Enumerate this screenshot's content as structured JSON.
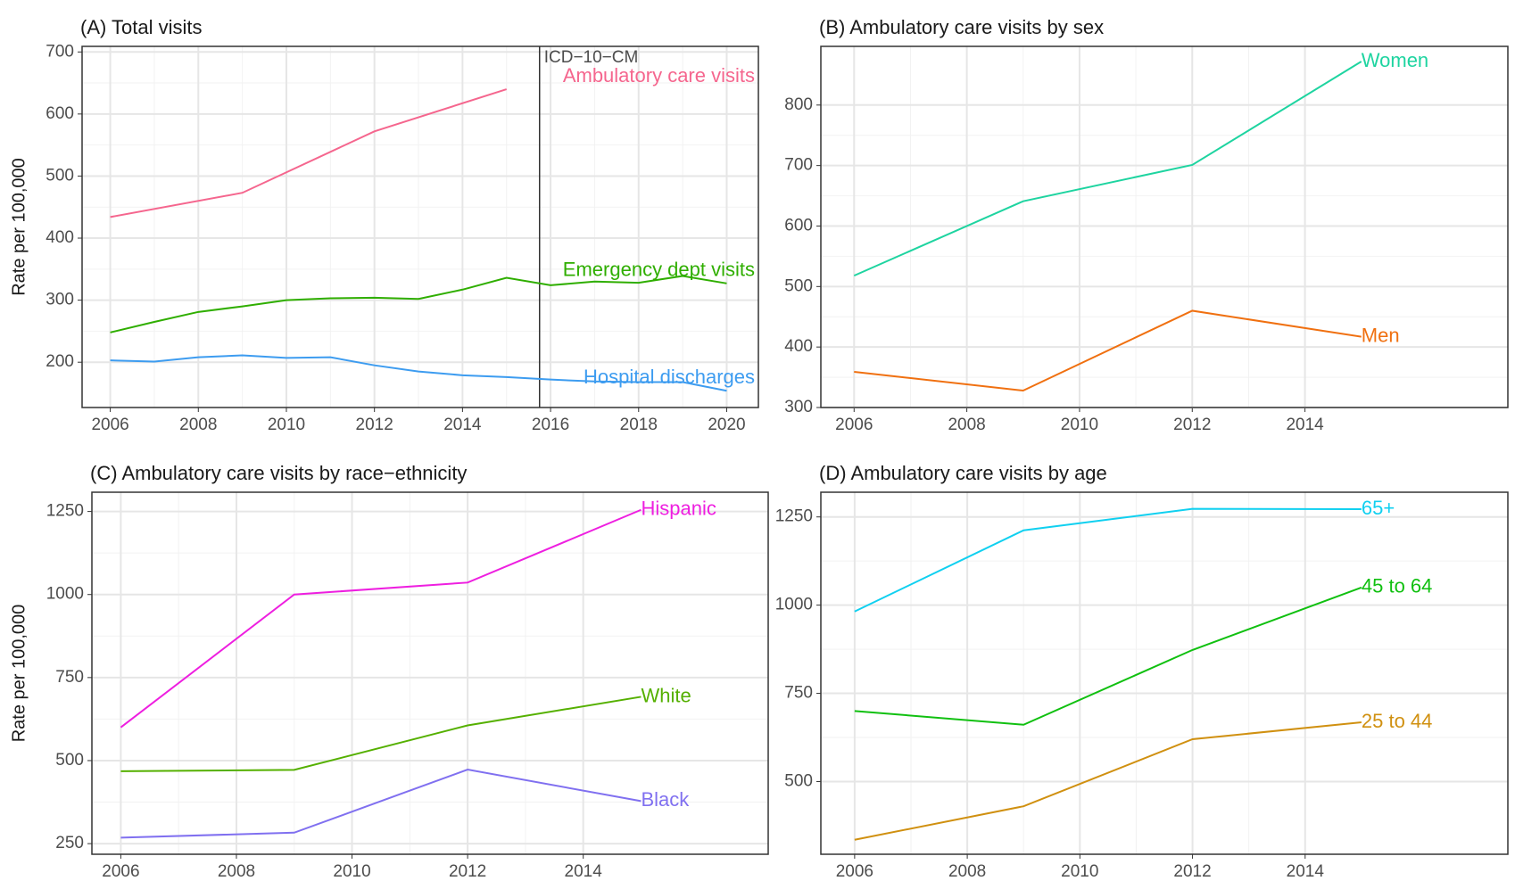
{
  "chart_data": [
    {
      "type": "line",
      "title": "(A) Total visits",
      "ylabel": "Rate per 100,000",
      "grid": true,
      "xlim": [
        2005.36,
        2020.72
      ],
      "xticks": [
        2006,
        2008,
        2010,
        2012,
        2014,
        2016,
        2018,
        2020
      ],
      "ylim": [
        127,
        709
      ],
      "yticks": [
        200,
        300,
        400,
        500,
        600,
        700
      ],
      "annotation": {
        "text": "ICD−10−CM",
        "x": 2015.75
      },
      "series": [
        {
          "name": "Ambulatory care visits",
          "color": "#f5668e",
          "x": [
            2006,
            2009,
            2012,
            2015
          ],
          "values": [
            434,
            473,
            572,
            640
          ]
        },
        {
          "name": "Emergency dept visits",
          "color": "#2fae00",
          "x": [
            2006,
            2007,
            2008,
            2009,
            2010,
            2011,
            2012,
            2013,
            2014,
            2015,
            2016,
            2017,
            2018,
            2019,
            2020
          ],
          "values": [
            248,
            265,
            281,
            290,
            300,
            303,
            304,
            302,
            317,
            336,
            324,
            330,
            328,
            339,
            327
          ]
        },
        {
          "name": "Hospital discharges",
          "color": "#3d9cf0",
          "x": [
            2006,
            2007,
            2008,
            2009,
            2010,
            2011,
            2012,
            2013,
            2014,
            2015,
            2016,
            2017,
            2018,
            2019,
            2020
          ],
          "values": [
            203,
            201,
            208,
            211,
            207,
            208,
            195,
            185,
            179,
            176,
            172,
            169,
            168,
            168,
            154
          ]
        }
      ]
    },
    {
      "type": "line",
      "title": "(B) Ambulatory care visits by sex",
      "grid": true,
      "xlim": [
        2005.41,
        2017.6
      ],
      "xticks": [
        2006,
        2008,
        2010,
        2012,
        2014
      ],
      "ylim": [
        300,
        897
      ],
      "yticks": [
        300,
        400,
        500,
        600,
        700,
        800
      ],
      "series": [
        {
          "name": "Women",
          "color": "#1ed4a0",
          "x": [
            2006,
            2009,
            2012,
            2015
          ],
          "values": [
            518,
            641,
            701,
            872
          ]
        },
        {
          "name": "Men",
          "color": "#f07010",
          "x": [
            2006,
            2009,
            2012,
            2015
          ],
          "values": [
            359,
            328,
            460,
            417
          ]
        }
      ]
    },
    {
      "type": "line",
      "title": "(C) Ambulatory care visits by race−ethnicity",
      "ylabel": "Rate per 100,000",
      "grid": true,
      "xlim": [
        2005.5,
        2017.2
      ],
      "xticks": [
        2006,
        2008,
        2010,
        2012,
        2014
      ],
      "ylim": [
        218,
        1308
      ],
      "yticks": [
        250,
        500,
        750,
        1000,
        1250
      ],
      "series": [
        {
          "name": "Hispanic",
          "color": "#ee1fe0",
          "x": [
            2006,
            2009,
            2012,
            2015
          ],
          "values": [
            600,
            1000,
            1036,
            1255
          ]
        },
        {
          "name": "White",
          "color": "#55b000",
          "x": [
            2006,
            2009,
            2012,
            2015
          ],
          "values": [
            468,
            472,
            606,
            692
          ]
        },
        {
          "name": "Black",
          "color": "#8070f0",
          "x": [
            2006,
            2009,
            2012,
            2015
          ],
          "values": [
            268,
            283,
            473,
            378
          ]
        }
      ]
    },
    {
      "type": "line",
      "title": "(D) Ambulatory care visits by age",
      "grid": true,
      "xlim": [
        2005.4,
        2017.6
      ],
      "xticks": [
        2006,
        2008,
        2010,
        2012,
        2014
      ],
      "ylim": [
        294,
        1320
      ],
      "yticks": [
        500,
        750,
        1000,
        1250
      ],
      "series": [
        {
          "name": "65+",
          "color": "#10d0f0",
          "x": [
            2006,
            2009,
            2012,
            2015
          ],
          "values": [
            982,
            1212,
            1273,
            1272
          ]
        },
        {
          "name": "45 to 64",
          "color": "#10c010",
          "x": [
            2006,
            2009,
            2012,
            2015
          ],
          "values": [
            700,
            661,
            873,
            1050
          ]
        },
        {
          "name": "25 to 44",
          "color": "#d09010",
          "x": [
            2006,
            2009,
            2012,
            2015
          ],
          "values": [
            335,
            430,
            620,
            668
          ]
        }
      ]
    }
  ]
}
